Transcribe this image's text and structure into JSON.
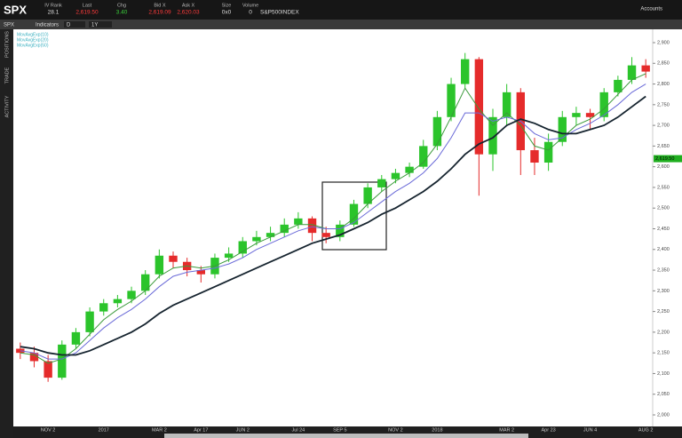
{
  "header": {
    "symbol": "SPX",
    "fields": [
      {
        "label": "IV Rank",
        "value": "28.1",
        "color": "#dddddd"
      },
      {
        "label": "Last",
        "value": "2,619.50",
        "color": "#ff3b3b"
      },
      {
        "label": "Chg",
        "value": "3.40",
        "color": "#3bd23b"
      },
      {
        "label": "Bid X",
        "value": "2,619.09",
        "color": "#ff3b3b"
      },
      {
        "label": "Ask X",
        "value": "2,620.03",
        "color": "#ff3b3b"
      },
      {
        "label": "Size",
        "value": "0x0",
        "color": "#dddddd"
      },
      {
        "label": "Volume",
        "value": "0",
        "color": "#dddddd"
      }
    ],
    "description": "S&P500INDEX",
    "accounts": "Accounts"
  },
  "toolbar": {
    "symbol": "SPX",
    "indicators": "Indicators",
    "period": "D",
    "range": "1Y"
  },
  "side_tabs": [
    "POSITIONS",
    "TRADE",
    "ACTIVITY"
  ],
  "chart_data": {
    "type": "candlestick",
    "categories": [
      null,
      null,
      "NOV 2",
      null,
      null,
      null,
      "2017",
      null,
      null,
      null,
      "MAR 2",
      null,
      null,
      "Apr 17",
      null,
      null,
      "JUN 2",
      null,
      null,
      null,
      "Jul 24",
      null,
      null,
      "SEP 5",
      null,
      null,
      null,
      "NOV 2",
      null,
      null,
      "2018",
      null,
      null,
      null,
      null,
      "MAR 2",
      null,
      null,
      "Apr 23",
      null,
      null,
      "JUN 4",
      null,
      null,
      null,
      "AUG 2"
    ],
    "open": [
      2160,
      2150,
      2130,
      2090,
      2170,
      2200,
      2250,
      2270,
      2280,
      2300,
      2340,
      2385,
      2370,
      2350,
      2340,
      2380,
      2390,
      2420,
      2430,
      2440,
      2460,
      2475,
      2440,
      2430,
      2460,
      2510,
      2550,
      2570,
      2585,
      2600,
      2650,
      2720,
      2800,
      2860,
      2630,
      2720,
      2780,
      2640,
      2610,
      2660,
      2720,
      2730,
      2720,
      2780,
      2810,
      2845
    ],
    "high": [
      2175,
      2165,
      2145,
      2180,
      2210,
      2260,
      2280,
      2290,
      2310,
      2350,
      2400,
      2395,
      2380,
      2360,
      2390,
      2405,
      2430,
      2445,
      2455,
      2475,
      2490,
      2480,
      2455,
      2470,
      2520,
      2560,
      2580,
      2595,
      2610,
      2665,
      2735,
      2815,
      2875,
      2865,
      2740,
      2800,
      2790,
      2670,
      2680,
      2735,
      2745,
      2740,
      2790,
      2820,
      2865,
      2860
    ],
    "low": [
      2135,
      2115,
      2080,
      2085,
      2160,
      2190,
      2240,
      2260,
      2270,
      2290,
      2330,
      2355,
      2335,
      2320,
      2330,
      2370,
      2380,
      2410,
      2420,
      2430,
      2450,
      2420,
      2415,
      2420,
      2455,
      2500,
      2540,
      2560,
      2575,
      2595,
      2640,
      2710,
      2790,
      2530,
      2590,
      2700,
      2580,
      2580,
      2590,
      2650,
      2700,
      2690,
      2710,
      2770,
      2800,
      2815
    ],
    "close": [
      2150,
      2130,
      2090,
      2170,
      2200,
      2250,
      2270,
      2280,
      2300,
      2340,
      2385,
      2370,
      2350,
      2340,
      2380,
      2390,
      2420,
      2430,
      2440,
      2460,
      2475,
      2440,
      2430,
      2460,
      2510,
      2550,
      2570,
      2585,
      2600,
      2650,
      2720,
      2800,
      2860,
      2630,
      2720,
      2780,
      2640,
      2610,
      2660,
      2720,
      2730,
      2720,
      2780,
      2810,
      2845,
      2830
    ],
    "up_color": "#2bc42b",
    "down_color": "#e52b2b",
    "series": [
      {
        "name": "MovAvgExp(10)",
        "color": "#3a9a3a",
        "width": 1,
        "values": [
          2150,
          2145,
          2125,
          2135,
          2160,
          2195,
          2230,
          2255,
          2275,
          2300,
          2335,
          2355,
          2360,
          2355,
          2360,
          2375,
          2395,
          2415,
          2430,
          2445,
          2460,
          2460,
          2450,
          2450,
          2475,
          2510,
          2540,
          2565,
          2585,
          2610,
          2655,
          2720,
          2790,
          2740,
          2700,
          2730,
          2700,
          2650,
          2640,
          2670,
          2700,
          2715,
          2740,
          2775,
          2810,
          2825
        ]
      },
      {
        "name": "MovAvgExp(20)",
        "color": "#6a6ad8",
        "width": 1,
        "values": [
          2155,
          2150,
          2135,
          2135,
          2150,
          2180,
          2210,
          2235,
          2255,
          2280,
          2310,
          2335,
          2345,
          2350,
          2355,
          2365,
          2380,
          2400,
          2415,
          2430,
          2445,
          2455,
          2450,
          2450,
          2465,
          2490,
          2515,
          2540,
          2560,
          2585,
          2620,
          2670,
          2730,
          2730,
          2710,
          2720,
          2710,
          2680,
          2665,
          2670,
          2690,
          2705,
          2725,
          2750,
          2780,
          2800
        ]
      },
      {
        "name": "MovAvgExp(50)",
        "color": "#16242f",
        "width": 1.8,
        "values": [
          2165,
          2160,
          2150,
          2145,
          2145,
          2155,
          2170,
          2185,
          2200,
          2220,
          2245,
          2265,
          2280,
          2295,
          2310,
          2325,
          2340,
          2355,
          2370,
          2385,
          2400,
          2415,
          2425,
          2435,
          2450,
          2465,
          2485,
          2500,
          2520,
          2540,
          2565,
          2595,
          2630,
          2655,
          2670,
          2700,
          2715,
          2705,
          2690,
          2680,
          2680,
          2690,
          2700,
          2720,
          2745,
          2770
        ]
      }
    ],
    "ylim": [
      2000,
      2900
    ],
    "yticks": [
      {
        "value": 2000,
        "label": "2,000"
      },
      {
        "value": 2050,
        "label": "2,050"
      },
      {
        "value": 2100,
        "label": "2,100"
      },
      {
        "value": 2150,
        "label": "2,150"
      },
      {
        "value": 2200,
        "label": "2,200"
      },
      {
        "value": 2250,
        "label": "2,250"
      },
      {
        "value": 2300,
        "label": "2,300"
      },
      {
        "value": 2350,
        "label": "2,350"
      },
      {
        "value": 2400,
        "label": "2,400"
      },
      {
        "value": 2450,
        "label": "2,450"
      },
      {
        "value": 2500,
        "label": "2,500"
      },
      {
        "value": 2550,
        "label": "2,550"
      },
      {
        "value": 2600,
        "label": "2,600"
      },
      {
        "value": 2650,
        "label": "2,650"
      },
      {
        "value": 2700,
        "label": "2,700"
      },
      {
        "value": 2750,
        "label": "2,750"
      },
      {
        "value": 2800,
        "label": "2,800"
      },
      {
        "value": 2850,
        "label": "2,850"
      },
      {
        "value": 2900,
        "label": "2,900"
      }
    ],
    "price_marker": {
      "value": 2619.5,
      "label": "2,619.50",
      "color": "#1fae1f"
    }
  }
}
